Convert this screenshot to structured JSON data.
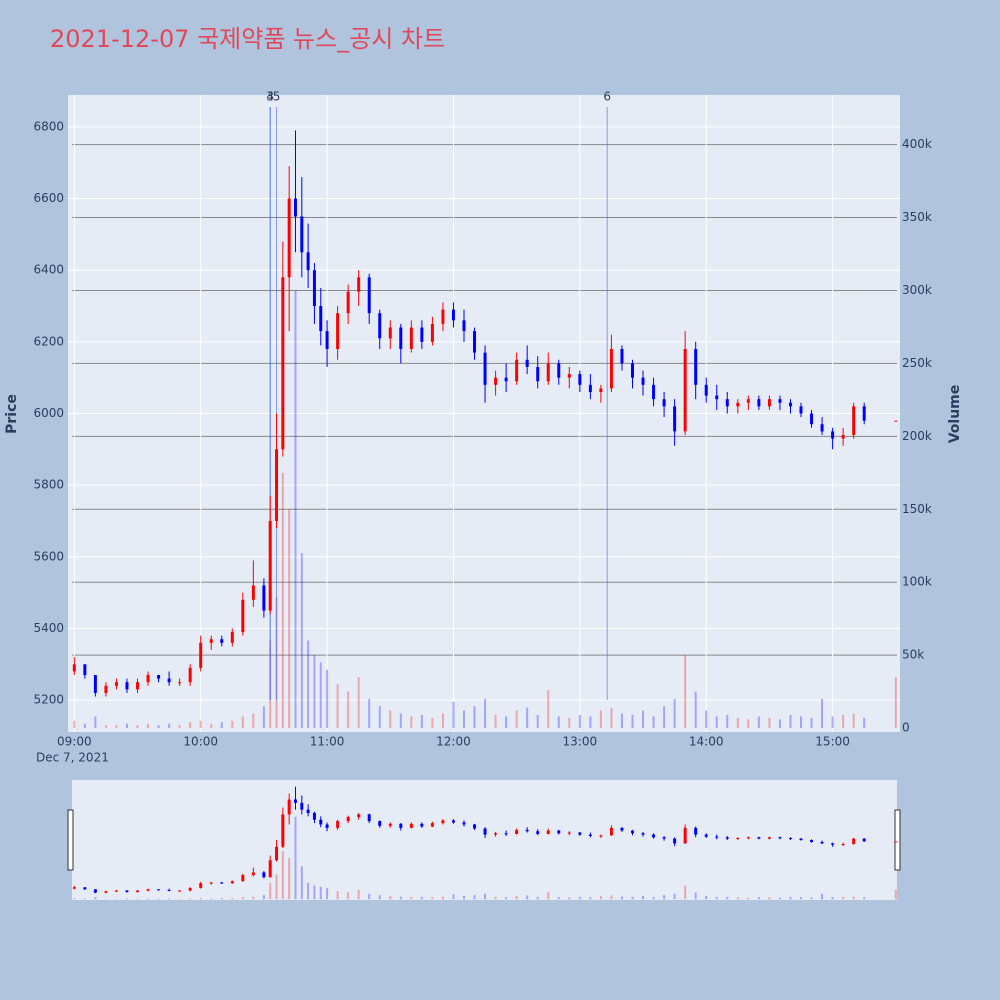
{
  "chart_data": {
    "type": "candlestick",
    "title": "2021-12-07 국제약품 뉴스_공시 차트",
    "title_color": "#e0485a",
    "increasing_color": "#ff0000",
    "decreasing_color": "#0000ff",
    "y_label": "Price",
    "y2_label": "Volume",
    "x_date_label": "Dec 7, 2021",
    "xlim": [
      "08:57",
      "15:32"
    ],
    "xticks": [
      "09:00",
      "10:00",
      "11:00",
      "12:00",
      "13:00",
      "14:00",
      "15:00"
    ],
    "ylim": [
      5111,
      6889
    ],
    "yticks": [
      5200,
      5400,
      5600,
      5800,
      6000,
      6200,
      6400,
      6600,
      6800
    ],
    "y2lim": [
      -2700,
      434000
    ],
    "y2ticks": [
      0,
      {
        "value": 50000,
        "label": "50k"
      },
      {
        "value": 100000,
        "label": "100k"
      },
      {
        "value": 150000,
        "label": "150k"
      },
      {
        "value": 200000,
        "label": "200k"
      },
      {
        "value": 250000,
        "label": "250k"
      },
      {
        "value": 300000,
        "label": "300k"
      },
      {
        "value": 350000,
        "label": "350k"
      },
      {
        "value": 400000,
        "label": "400k"
      }
    ],
    "grid": true,
    "range_slider": true,
    "annotations": [
      {
        "x": "10:33",
        "label": "3"
      },
      {
        "x": "10:33",
        "label": "4"
      },
      {
        "x": "10:36",
        "label": "5"
      },
      {
        "x": "13:13",
        "label": "6"
      }
    ],
    "x": [
      "09:00",
      "09:05",
      "09:10",
      "09:15",
      "09:20",
      "09:25",
      "09:30",
      "09:35",
      "09:40",
      "09:45",
      "09:50",
      "09:55",
      "10:00",
      "10:05",
      "10:10",
      "10:15",
      "10:20",
      "10:25",
      "10:30",
      "10:33",
      "10:36",
      "10:39",
      "10:42",
      "10:45",
      "10:48",
      "10:51",
      "10:54",
      "10:57",
      "11:00",
      "11:05",
      "11:10",
      "11:15",
      "11:20",
      "11:25",
      "11:30",
      "11:35",
      "11:40",
      "11:45",
      "11:50",
      "11:55",
      "12:00",
      "12:05",
      "12:10",
      "12:15",
      "12:20",
      "12:25",
      "12:30",
      "12:35",
      "12:40",
      "12:45",
      "12:50",
      "12:55",
      "13:00",
      "13:05",
      "13:10",
      "13:15",
      "13:20",
      "13:25",
      "13:30",
      "13:35",
      "13:40",
      "13:45",
      "13:50",
      "13:55",
      "14:00",
      "14:05",
      "14:10",
      "14:15",
      "14:20",
      "14:25",
      "14:30",
      "14:35",
      "14:40",
      "14:45",
      "14:50",
      "14:55",
      "15:00",
      "15:05",
      "15:10",
      "15:15",
      "15:30"
    ],
    "open": [
      5280,
      5300,
      5270,
      5220,
      5240,
      5250,
      5230,
      5250,
      5270,
      5260,
      5250,
      5250,
      5290,
      5360,
      5370,
      5360,
      5390,
      5480,
      5520,
      5450,
      5700,
      5900,
      6380,
      6600,
      6550,
      6450,
      6400,
      6300,
      6230,
      6180,
      6280,
      6340,
      6380,
      6280,
      6210,
      6240,
      6180,
      6240,
      6200,
      6250,
      6290,
      6260,
      6230,
      6170,
      6080,
      6100,
      6090,
      6150,
      6130,
      6090,
      6140,
      6100,
      6110,
      6080,
      6060,
      6070,
      6180,
      6140,
      6100,
      6080,
      6040,
      6020,
      5950,
      6180,
      6080,
      6050,
      6040,
      6020,
      6030,
      6040,
      6020,
      6040,
      6030,
      6020,
      6000,
      5970,
      5950,
      5930,
      5940,
      6020,
      5980
    ],
    "high": [
      5320,
      5300,
      5270,
      5250,
      5260,
      5260,
      5260,
      5280,
      5270,
      5280,
      5260,
      5300,
      5380,
      5380,
      5380,
      5400,
      5500,
      5590,
      5540,
      5770,
      6000,
      6480,
      6690,
      6790,
      6660,
      6530,
      6420,
      6350,
      6260,
      6300,
      6360,
      6400,
      6390,
      6290,
      6260,
      6250,
      6260,
      6260,
      6270,
      6310,
      6310,
      6290,
      6240,
      6190,
      6120,
      6140,
      6170,
      6190,
      6160,
      6170,
      6150,
      6130,
      6120,
      6110,
      6080,
      6220,
      6190,
      6150,
      6120,
      6100,
      6060,
      6040,
      6230,
      6200,
      6100,
      6080,
      6060,
      6040,
      6050,
      6050,
      6050,
      6050,
      6040,
      6030,
      6010,
      5990,
      5960,
      5960,
      6030,
      6030,
      5980
    ],
    "low": [
      5270,
      5260,
      5210,
      5210,
      5230,
      5220,
      5220,
      5240,
      5250,
      5240,
      5240,
      5240,
      5280,
      5340,
      5350,
      5350,
      5380,
      5460,
      5430,
      5440,
      5680,
      5880,
      6230,
      6450,
      6380,
      6350,
      6250,
      6190,
      6130,
      6150,
      6250,
      6300,
      6250,
      6180,
      6180,
      6140,
      6170,
      6180,
      6190,
      6230,
      6240,
      6200,
      6150,
      6030,
      6050,
      6060,
      6080,
      6110,
      6070,
      6080,
      6080,
      6070,
      6060,
      6040,
      6030,
      6060,
      6120,
      6070,
      6050,
      6020,
      5990,
      5910,
      5940,
      6040,
      6030,
      6010,
      6000,
      6000,
      6010,
      6010,
      6010,
      6010,
      6000,
      5990,
      5960,
      5940,
      5900,
      5910,
      5930,
      5970,
      5980
    ],
    "close": [
      5300,
      5270,
      5220,
      5240,
      5250,
      5230,
      5250,
      5270,
      5260,
      5250,
      5250,
      5290,
      5360,
      5370,
      5360,
      5390,
      5480,
      5520,
      5450,
      5700,
      5900,
      6380,
      6600,
      6550,
      6450,
      6400,
      6300,
      6230,
      6180,
      6280,
      6340,
      6380,
      6280,
      6210,
      6240,
      6180,
      6240,
      6200,
      6250,
      6290,
      6260,
      6230,
      6170,
      6080,
      6100,
      6090,
      6150,
      6130,
      6090,
      6140,
      6100,
      6110,
      6080,
      6060,
      6070,
      6180,
      6140,
      6100,
      6080,
      6040,
      6020,
      5950,
      6180,
      6080,
      6050,
      6040,
      6020,
      6030,
      6040,
      6020,
      6040,
      6030,
      6020,
      6000,
      5970,
      5950,
      5930,
      5940,
      6020,
      5980,
      5980
    ],
    "volume": [
      5000,
      3000,
      8000,
      2000,
      2000,
      3000,
      2000,
      3000,
      2000,
      3000,
      2000,
      4000,
      5000,
      3000,
      4000,
      5000,
      8000,
      10000,
      15000,
      60000,
      90000,
      175000,
      150000,
      300000,
      120000,
      60000,
      50000,
      45000,
      40000,
      30000,
      25000,
      35000,
      20000,
      15000,
      12000,
      10000,
      8000,
      9000,
      7000,
      10000,
      18000,
      12000,
      15000,
      20000,
      9000,
      8000,
      12000,
      14000,
      9000,
      26000,
      8000,
      7000,
      9000,
      8000,
      12000,
      14000,
      10000,
      9000,
      12000,
      8000,
      15000,
      20000,
      50000,
      25000,
      12000,
      8000,
      9000,
      7000,
      6000,
      8000,
      7000,
      6000,
      9000,
      8000,
      7000,
      20000,
      8000,
      9000,
      10000,
      7000,
      35000
    ]
  }
}
